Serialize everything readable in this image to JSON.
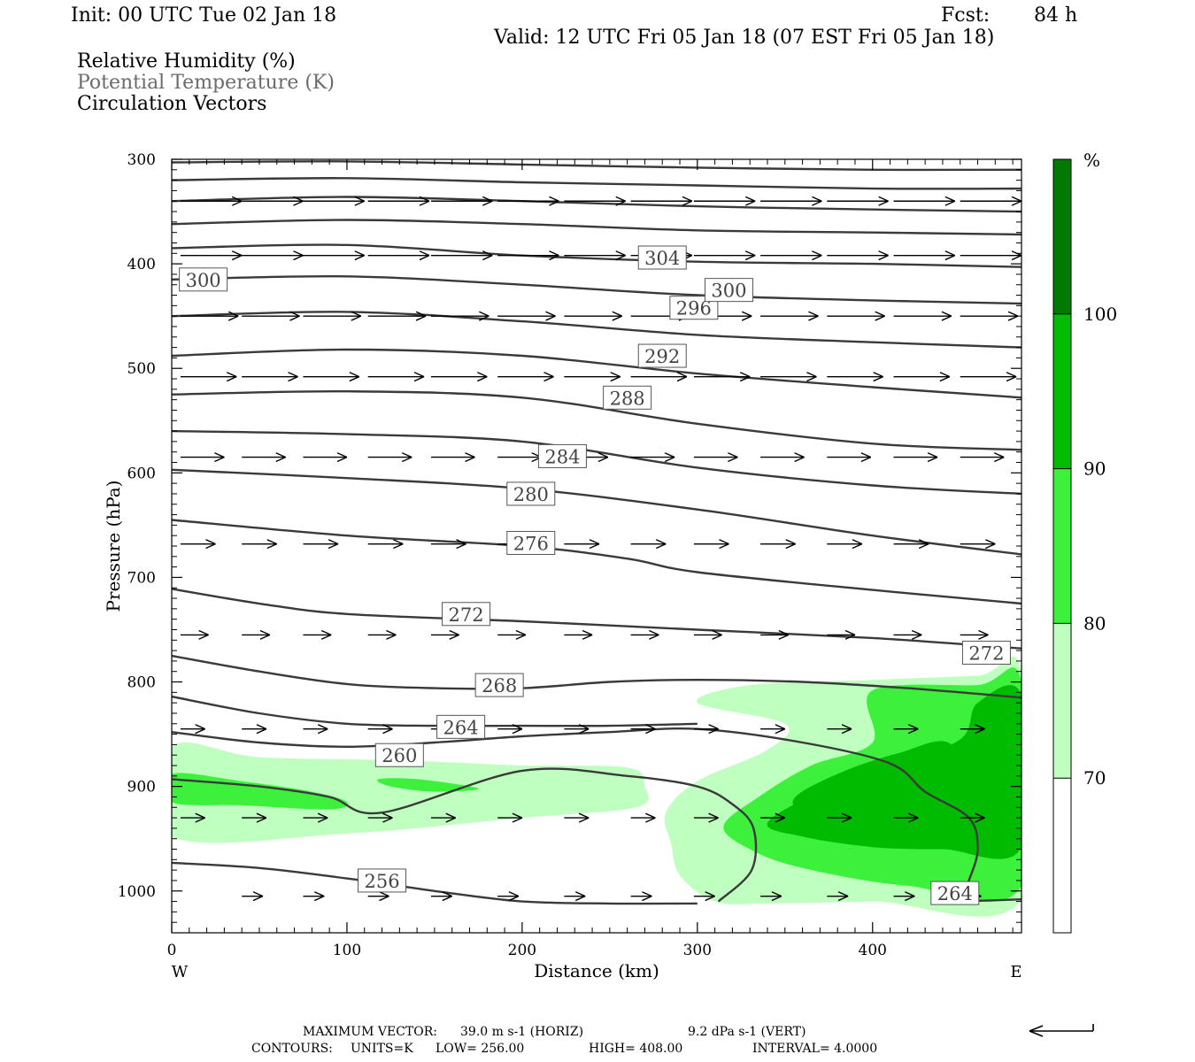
{
  "header": {
    "init": "Init: 00 UTC Tue 02 Jan 18",
    "fcst_label": "Fcst:",
    "fcst_value": "84 h",
    "valid": "Valid: 12 UTC Fri 05 Jan 18 (07 EST Fri 05 Jan 18)"
  },
  "legend_titles": {
    "rh": "Relative Humidity (%)",
    "theta": "Potential Temperature (K)",
    "vectors": "Circulation Vectors"
  },
  "colors": {
    "rh_70_80": "#bfffbf",
    "rh_80_90": "#3cf03c",
    "rh_90_100": "#00bb00",
    "rh_100": "#007a00",
    "contour": "#3a3a3a",
    "frame": "#000000"
  },
  "chart_data": {
    "type": "contour-cross-section",
    "xlabel": "Distance (km)",
    "ylabel": "Pressure (hPa)",
    "xlim": [
      0,
      485
    ],
    "ylim": [
      1040,
      300
    ],
    "y_scale": "linear-pressure-inverted",
    "x_ticks": [
      0,
      100,
      200,
      300,
      400
    ],
    "x_tick_labels": [
      "0",
      "100",
      "200",
      "300",
      "400"
    ],
    "y_ticks": [
      300,
      400,
      500,
      600,
      700,
      800,
      900,
      1000
    ],
    "y_tick_labels": [
      "300",
      "400",
      "500",
      "600",
      "700",
      "800",
      "900",
      "1000"
    ],
    "x_endpoints": {
      "left": "W",
      "right": "E"
    },
    "colorbar": {
      "unit": "%",
      "levels": [
        70,
        80,
        90,
        100
      ],
      "level_labels": [
        "70",
        "80",
        "90",
        "100"
      ]
    },
    "rh_regions": [
      {
        "level": 70,
        "points": [
          [
            0,
            862
          ],
          [
            50,
            872
          ],
          [
            130,
            875
          ],
          [
            200,
            880
          ],
          [
            260,
            882
          ],
          [
            270,
            900
          ],
          [
            265,
            920
          ],
          [
            200,
            930
          ],
          [
            100,
            945
          ],
          [
            0,
            948
          ]
        ]
      },
      {
        "level": 70,
        "points": [
          [
            300,
            820
          ],
          [
            330,
            803
          ],
          [
            400,
            798
          ],
          [
            460,
            794
          ],
          [
            485,
            791
          ],
          [
            485,
            1008
          ],
          [
            400,
            1010
          ],
          [
            340,
            1012
          ],
          [
            310,
            1010
          ],
          [
            290,
            985
          ],
          [
            285,
            955
          ],
          [
            282,
            925
          ],
          [
            300,
            895
          ],
          [
            340,
            865
          ],
          [
            350,
            840
          ]
        ]
      },
      {
        "level": 80,
        "points": [
          [
            0,
            888
          ],
          [
            40,
            895
          ],
          [
            80,
            905
          ],
          [
            100,
            915
          ],
          [
            90,
            922
          ],
          [
            40,
            918
          ],
          [
            0,
            915
          ]
        ]
      },
      {
        "level": 80,
        "points": [
          [
            118,
            893
          ],
          [
            140,
            893
          ],
          [
            175,
            902
          ],
          [
            150,
            905
          ],
          [
            125,
            900
          ]
        ]
      },
      {
        "level": 80,
        "points": [
          [
            315,
            938
          ],
          [
            335,
            910
          ],
          [
            365,
            880
          ],
          [
            400,
            858
          ],
          [
            400,
            808
          ],
          [
            460,
            803
          ],
          [
            485,
            800
          ],
          [
            485,
            995
          ],
          [
            420,
            995
          ],
          [
            360,
            978
          ],
          [
            330,
            960
          ]
        ]
      },
      {
        "level": 90,
        "points": [
          [
            340,
            935
          ],
          [
            370,
            905
          ],
          [
            410,
            880
          ],
          [
            450,
            855
          ],
          [
            460,
            820
          ],
          [
            485,
            813
          ],
          [
            485,
            958
          ],
          [
            440,
            960
          ],
          [
            400,
            958
          ],
          [
            360,
            948
          ]
        ]
      },
      {
        "level": 90,
        "points": [
          [
            355,
            912
          ],
          [
            380,
            888
          ],
          [
            415,
            868
          ],
          [
            445,
            860
          ],
          [
            455,
            925
          ],
          [
            430,
            950
          ],
          [
            395,
            945
          ],
          [
            365,
            930
          ]
        ]
      }
    ],
    "theta_contours": [
      {
        "value": 256,
        "points": [
          [
            0,
            973
          ],
          [
            50,
            978
          ],
          [
            100,
            988
          ],
          [
            150,
            1000
          ],
          [
            200,
            1010
          ],
          [
            250,
            1012
          ],
          [
            300,
            1012
          ]
        ]
      },
      {
        "value": 260,
        "points": [
          [
            0,
            893
          ],
          [
            50,
            900
          ],
          [
            90,
            910
          ],
          [
            120,
            925
          ],
          [
            200,
            885
          ],
          [
            260,
            890
          ],
          [
            300,
            900
          ],
          [
            320,
            917
          ],
          [
            332,
            940
          ],
          [
            331,
            980
          ],
          [
            312,
            1010
          ]
        ]
      },
      {
        "value": 264,
        "points": [
          [
            0,
            848
          ],
          [
            50,
            858
          ],
          [
            100,
            862
          ],
          [
            150,
            858
          ],
          [
            200,
            852
          ],
          [
            250,
            848
          ],
          [
            300,
            845
          ],
          [
            360,
            858
          ],
          [
            410,
            878
          ],
          [
            430,
            905
          ],
          [
            455,
            930
          ],
          [
            460,
            960
          ],
          [
            455,
            990
          ],
          [
            450,
            1008
          ],
          [
            485,
            1008
          ]
        ]
      },
      {
        "value": 268,
        "points": [
          [
            0,
            814
          ],
          [
            50,
            830
          ],
          [
            100,
            840
          ],
          [
            150,
            842
          ],
          [
            200,
            842
          ],
          [
            250,
            842
          ],
          [
            300,
            840
          ]
        ]
      },
      {
        "value": 268,
        "points": [
          [
            0,
            775
          ],
          [
            50,
            790
          ],
          [
            100,
            802
          ],
          [
            150,
            806
          ],
          [
            200,
            806
          ],
          [
            250,
            800
          ],
          [
            300,
            798
          ],
          [
            360,
            800
          ],
          [
            420,
            806
          ],
          [
            485,
            815
          ]
        ]
      },
      {
        "value": 272,
        "points": [
          [
            0,
            711
          ],
          [
            50,
            725
          ],
          [
            100,
            735
          ],
          [
            200,
            742
          ],
          [
            300,
            750
          ],
          [
            400,
            758
          ],
          [
            485,
            768
          ]
        ]
      },
      {
        "value": 276,
        "points": [
          [
            0,
            645
          ],
          [
            100,
            660
          ],
          [
            200,
            670
          ],
          [
            260,
            682
          ],
          [
            300,
            695
          ],
          [
            400,
            712
          ],
          [
            485,
            725
          ]
        ]
      },
      {
        "value": 280,
        "points": [
          [
            0,
            597
          ],
          [
            100,
            605
          ],
          [
            200,
            615
          ],
          [
            300,
            635
          ],
          [
            400,
            660
          ],
          [
            485,
            678
          ]
        ]
      },
      {
        "value": 284,
        "points": [
          [
            0,
            560
          ],
          [
            100,
            563
          ],
          [
            200,
            570
          ],
          [
            300,
            595
          ],
          [
            400,
            612
          ],
          [
            485,
            620
          ]
        ]
      },
      {
        "value": 288,
        "points": [
          [
            0,
            525
          ],
          [
            100,
            522
          ],
          [
            200,
            528
          ],
          [
            300,
            553
          ],
          [
            400,
            572
          ],
          [
            485,
            578
          ]
        ]
      },
      {
        "value": 292,
        "points": [
          [
            0,
            488
          ],
          [
            100,
            482
          ],
          [
            200,
            488
          ],
          [
            300,
            505
          ],
          [
            400,
            518
          ],
          [
            485,
            528
          ]
        ]
      },
      {
        "value": 296,
        "points": [
          [
            0,
            450
          ],
          [
            100,
            446
          ],
          [
            200,
            455
          ],
          [
            300,
            468
          ],
          [
            400,
            475
          ],
          [
            485,
            480
          ]
        ]
      },
      {
        "value": 300,
        "points": [
          [
            0,
            415
          ],
          [
            100,
            412
          ],
          [
            200,
            420
          ],
          [
            300,
            430
          ],
          [
            400,
            435
          ],
          [
            485,
            438
          ]
        ]
      },
      {
        "value": 304,
        "points": [
          [
            0,
            385
          ],
          [
            100,
            382
          ],
          [
            200,
            392
          ],
          [
            300,
            398
          ],
          [
            400,
            400
          ],
          [
            485,
            403
          ]
        ]
      },
      {
        "value": 308,
        "points": [
          [
            0,
            362
          ],
          [
            100,
            358
          ],
          [
            200,
            362
          ],
          [
            300,
            368
          ],
          [
            400,
            370
          ],
          [
            485,
            372
          ]
        ]
      },
      {
        "value": 312,
        "points": [
          [
            0,
            340
          ],
          [
            100,
            336
          ],
          [
            200,
            340
          ],
          [
            300,
            345
          ],
          [
            400,
            348
          ],
          [
            485,
            350
          ]
        ]
      },
      {
        "value": 316,
        "points": [
          [
            0,
            320
          ],
          [
            100,
            318
          ],
          [
            200,
            322
          ],
          [
            300,
            325
          ],
          [
            400,
            328
          ],
          [
            485,
            328
          ]
        ]
      },
      {
        "value": 320,
        "points": [
          [
            0,
            303
          ],
          [
            100,
            302
          ],
          [
            200,
            305
          ],
          [
            300,
            308
          ],
          [
            400,
            310
          ],
          [
            485,
            310
          ]
        ]
      }
    ],
    "contour_labels": [
      {
        "text": "256",
        "x": 120,
        "y": 990
      },
      {
        "text": "260",
        "x": 130,
        "y": 870
      },
      {
        "text": "264",
        "x": 165,
        "y": 843
      },
      {
        "text": "264",
        "x": 447,
        "y": 1002
      },
      {
        "text": "268",
        "x": 187,
        "y": 803
      },
      {
        "text": "272",
        "x": 168,
        "y": 735
      },
      {
        "text": "272",
        "x": 465,
        "y": 772
      },
      {
        "text": "276",
        "x": 205,
        "y": 667
      },
      {
        "text": "280",
        "x": 205,
        "y": 620
      },
      {
        "text": "284",
        "x": 223,
        "y": 584
      },
      {
        "text": "288",
        "x": 260,
        "y": 528
      },
      {
        "text": "292",
        "x": 280,
        "y": 488
      },
      {
        "text": "296",
        "x": 298,
        "y": 442
      },
      {
        "text": "300",
        "x": 18,
        "y": 415
      },
      {
        "text": "300",
        "x": 318,
        "y": 425
      },
      {
        "text": "304",
        "x": 280,
        "y": 394
      }
    ],
    "vector_rows": [
      {
        "p": 340,
        "xs": [
          5,
          40,
          75,
          112,
          148,
          186,
          224,
          262,
          298,
          336,
          374,
          412,
          450
        ],
        "len": 35,
        "slope": 0.0
      },
      {
        "p": 392,
        "xs": [
          5,
          40,
          75,
          112,
          148,
          186,
          224,
          262,
          298,
          336,
          374,
          412,
          450
        ],
        "len": 35,
        "slope": 0.0
      },
      {
        "p": 450,
        "xs": [
          5,
          40,
          75,
          112,
          148,
          186,
          224,
          262,
          298,
          336,
          374,
          412,
          450
        ],
        "len": 33,
        "slope": 0.0
      },
      {
        "p": 508,
        "xs": [
          5,
          40,
          75,
          112,
          148,
          186,
          224,
          262,
          298,
          336,
          374,
          412,
          450
        ],
        "len": 32,
        "slope": 0.0
      },
      {
        "p": 585,
        "xs": [
          5,
          40,
          75,
          112,
          148,
          186,
          224,
          262,
          298,
          336,
          374,
          412,
          450
        ],
        "len": 25,
        "slope": 0.0
      },
      {
        "p": 668,
        "xs": [
          5,
          40,
          75,
          112,
          148,
          186,
          224,
          262,
          298,
          336,
          374,
          412,
          450
        ],
        "len": 20,
        "slope": 0.0
      },
      {
        "p": 755,
        "xs": [
          5,
          40,
          75,
          112,
          148,
          186,
          224,
          262,
          298,
          336,
          374,
          412,
          450
        ],
        "len": 16,
        "slope": 0.0
      },
      {
        "p": 845,
        "xs": [
          5,
          40,
          75,
          112,
          148,
          186,
          224,
          262,
          298,
          336,
          374,
          412,
          450
        ],
        "len": 14,
        "slope": 0.0
      },
      {
        "p": 930,
        "xs": [
          5,
          40,
          75,
          112,
          148,
          186,
          224,
          262,
          298,
          336,
          374,
          412,
          450
        ],
        "len": 14,
        "slope": 0.0
      },
      {
        "p": 1005,
        "xs": [
          40,
          75,
          112,
          148,
          186,
          224,
          262,
          298,
          336,
          374,
          412,
          450
        ],
        "len": 12,
        "slope": 0.0
      }
    ]
  },
  "footer": {
    "max_vector_label": "MAXIMUM VECTOR:",
    "max_vector_horiz": "39.0 m s-1 (HORIZ)",
    "max_vector_vert": "9.2 dPa s-1 (VERT)",
    "contours_label": "CONTOURS:",
    "units": "UNITS=K",
    "low": "LOW= 256.00",
    "high": "HIGH= 408.00",
    "interval": "INTERVAL= 4.0000"
  }
}
